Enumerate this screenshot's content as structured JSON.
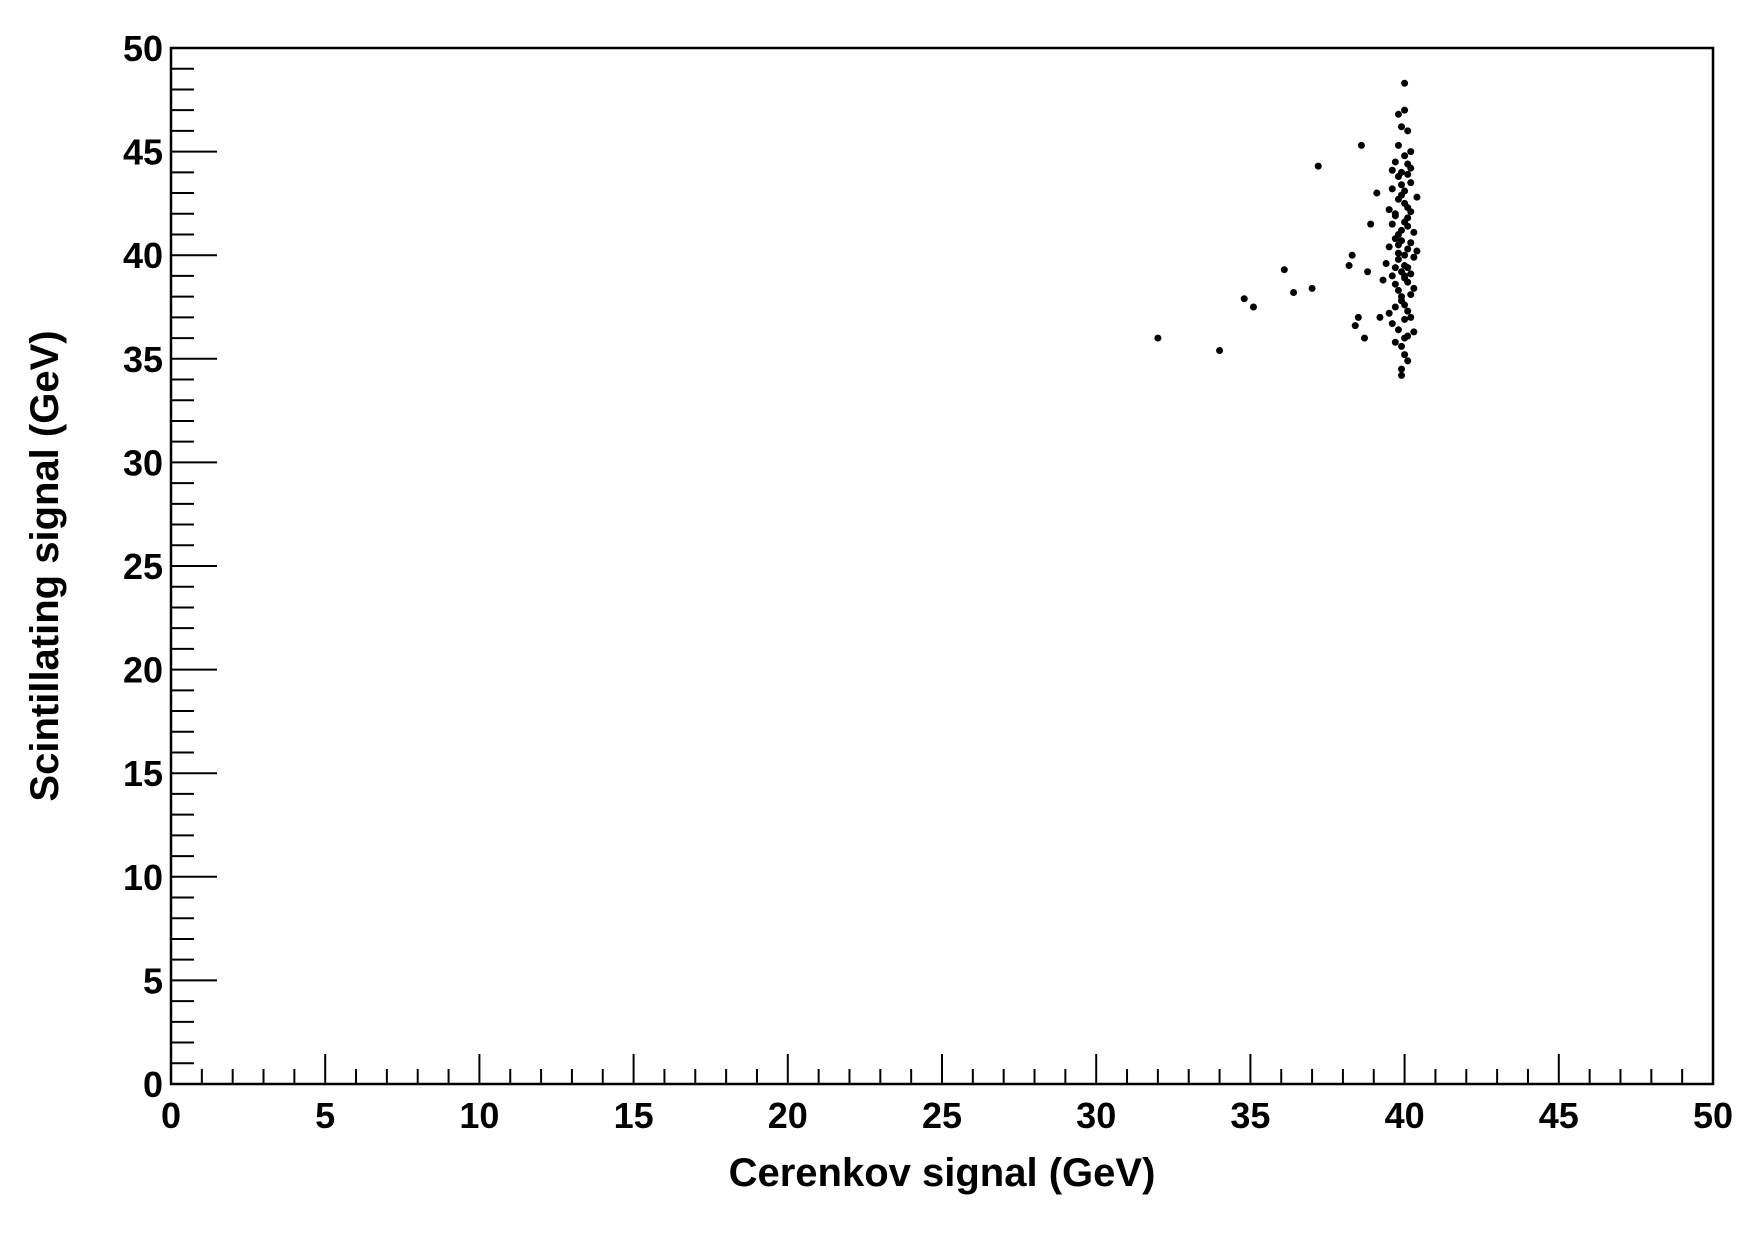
{
  "chart_data": {
    "type": "scatter",
    "x_label": "Cerenkov signal (GeV)",
    "y_label": "Scintillating signal (GeV)",
    "color": "#000000",
    "xlim": [
      0,
      50
    ],
    "ylim": [
      0,
      50
    ],
    "xticks": [
      0,
      5,
      10,
      15,
      20,
      25,
      30,
      35,
      40,
      45,
      50
    ],
    "yticks": [
      0,
      5,
      10,
      15,
      20,
      25,
      30,
      35,
      40,
      45,
      50
    ],
    "xminorticks": [
      1,
      2,
      3,
      4,
      6,
      7,
      8,
      9,
      11,
      12,
      13,
      14,
      16,
      17,
      18,
      19,
      21,
      22,
      23,
      24,
      26,
      27,
      28,
      29,
      31,
      32,
      33,
      34,
      36,
      37,
      38,
      39,
      41,
      42,
      43,
      44,
      46,
      47,
      48,
      49
    ],
    "yminorticks": [
      1,
      2,
      3,
      4,
      6,
      7,
      8,
      9,
      11,
      12,
      13,
      14,
      16,
      17,
      18,
      19,
      21,
      22,
      23,
      24,
      26,
      27,
      28,
      29,
      31,
      32,
      33,
      34,
      36,
      37,
      38,
      39,
      41,
      42,
      43,
      44,
      46,
      47,
      48,
      49
    ],
    "x": [
      39.8,
      40.0,
      39.9,
      40.1,
      39.7,
      40.2,
      39.6,
      40.0,
      39.9,
      40.1,
      39.8,
      40.3,
      39.7,
      40.0,
      39.9,
      40.1,
      39.8,
      40.2,
      39.6,
      40.0,
      39.9,
      40.1,
      39.7,
      40.2,
      39.8,
      40.0,
      39.9,
      40.1,
      39.5,
      40.3,
      39.8,
      40.0,
      39.9,
      40.1,
      39.7,
      40.2,
      39.6,
      40.0,
      39.9,
      40.1,
      39.8,
      40.0,
      39.9,
      40.1,
      39.7,
      40.2,
      39.8,
      40.0,
      39.9,
      40.1,
      39.6,
      40.3,
      39.5,
      40.2,
      39.7,
      40.0,
      39.9,
      40.1,
      39.8,
      40.0,
      39.4,
      40.4,
      39.6,
      40.3,
      39.8,
      40.0,
      39.9,
      40.1,
      39.7,
      40.2,
      39.3,
      40.4,
      39.5,
      40.0,
      39.8,
      40.1,
      39.9,
      40.0,
      39.7,
      40.2,
      32.0,
      34.0,
      34.8,
      35.1,
      36.1,
      36.4,
      37.0,
      37.2,
      38.6,
      38.3,
      38.5,
      38.7,
      38.9,
      39.1,
      38.8,
      39.2,
      38.4,
      38.2
    ],
    "y": [
      40.1,
      39.5,
      41.2,
      38.7,
      42.0,
      40.6,
      39.0,
      43.1,
      37.8,
      41.8,
      38.3,
      39.9,
      40.8,
      36.9,
      44.0,
      37.3,
      42.7,
      38.1,
      41.5,
      40.0,
      39.2,
      42.3,
      37.5,
      43.5,
      36.4,
      44.8,
      35.6,
      40.3,
      40.4,
      41.1,
      43.8,
      38.9,
      42.9,
      36.1,
      38.6,
      42.1,
      43.2,
      41.6,
      40.7,
      39.4,
      45.3,
      35.2,
      46.2,
      34.9,
      44.5,
      37.0,
      39.8,
      42.5,
      38.0,
      43.9,
      36.7,
      38.4,
      42.2,
      45.0,
      35.8,
      47.0,
      34.5,
      46.0,
      41.0,
      37.6,
      39.6,
      40.2,
      44.1,
      36.3,
      46.8,
      48.3,
      34.2,
      44.4,
      41.9,
      39.1,
      38.8,
      42.8,
      37.2,
      39.0,
      40.5,
      41.4,
      43.4,
      36.0,
      39.4,
      44.2,
      36.0,
      35.4,
      37.9,
      37.5,
      39.3,
      38.2,
      38.4,
      44.3,
      45.3,
      40.0,
      37.0,
      36.0,
      41.5,
      43.0,
      39.2,
      37.0,
      36.6,
      39.5
    ]
  }
}
